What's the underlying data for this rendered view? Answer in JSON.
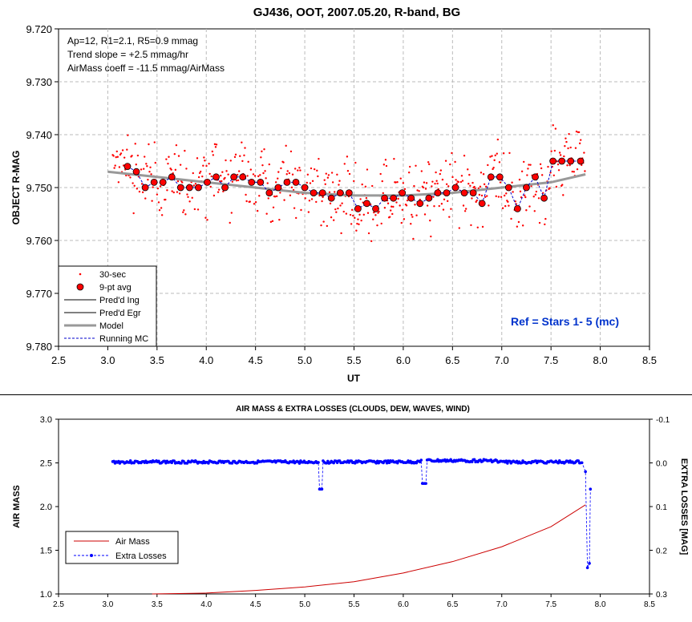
{
  "chart_data": [
    {
      "type": "scatter",
      "title": "GJ436, OOT, 2007.05.20, R-band, BG",
      "xlabel": "UT",
      "ylabel": "OBJECT R-MAG",
      "xlim": [
        2.5,
        8.5
      ],
      "ylim": [
        9.72,
        9.78
      ],
      "y_inverted": true,
      "x_ticks": [
        "2.5",
        "3.0",
        "3.5",
        "4.0",
        "4.5",
        "5.0",
        "5.5",
        "6.0",
        "6.5",
        "7.0",
        "7.5",
        "8.0",
        "8.5"
      ],
      "y_ticks": [
        "9.720",
        "9.730",
        "9.740",
        "9.750",
        "9.760",
        "9.770",
        "9.780"
      ],
      "grid": true,
      "notes": [
        "Ap=12, R1=2.1, R5=0.9 mmag",
        "Trend slope = +2.5 mmag/hr",
        "AirMass coeff = -11.5 mmag/AirMass"
      ],
      "ref_label": "Ref = Stars 1- 5 (mc)",
      "legend_position": "bottom-left",
      "legend": [
        "30-sec",
        "9-pt avg",
        "Pred'd Ing",
        "Pred'd Egr",
        "Model",
        "Running MC"
      ],
      "colors": {
        "raw": "#ff0000",
        "avg_fill": "#ff0000",
        "avg_edge": "#000000",
        "model": "#999999",
        "running": "#0000cc",
        "ref": "#0033cc"
      },
      "series": [
        {
          "name": "9-pt avg",
          "x": [
            3.2,
            3.29,
            3.38,
            3.47,
            3.56,
            3.65,
            3.74,
            3.83,
            3.92,
            4.01,
            4.1,
            4.19,
            4.28,
            4.37,
            4.46,
            4.55,
            4.64,
            4.73,
            4.82,
            4.91,
            5.0,
            5.09,
            5.18,
            5.27,
            5.36,
            5.45,
            5.54,
            5.63,
            5.72,
            5.81,
            5.9,
            5.99,
            6.08,
            6.17,
            6.26,
            6.35,
            6.44,
            6.53,
            6.62,
            6.71,
            6.8,
            6.89,
            6.98,
            7.07,
            7.16,
            7.25,
            7.34,
            7.43,
            7.52,
            7.61,
            7.7,
            7.8
          ],
          "y": [
            9.746,
            9.747,
            9.75,
            9.749,
            9.749,
            9.748,
            9.75,
            9.75,
            9.75,
            9.749,
            9.748,
            9.75,
            9.748,
            9.748,
            9.749,
            9.749,
            9.751,
            9.75,
            9.749,
            9.749,
            9.75,
            9.751,
            9.751,
            9.752,
            9.751,
            9.751,
            9.754,
            9.753,
            9.754,
            9.752,
            9.752,
            9.751,
            9.752,
            9.753,
            9.752,
            9.751,
            9.751,
            9.75,
            9.751,
            9.751,
            9.753,
            9.748,
            9.748,
            9.75,
            9.754,
            9.75,
            9.748,
            9.752,
            9.745,
            9.745,
            9.745,
            9.745
          ]
        },
        {
          "name": "Model",
          "x": [
            3.0,
            3.5,
            4.0,
            4.5,
            5.0,
            5.5,
            6.0,
            6.5,
            7.0,
            7.5,
            7.85
          ],
          "y": [
            9.747,
            9.748,
            9.749,
            9.75,
            9.751,
            9.7515,
            9.7515,
            9.751,
            9.75,
            9.749,
            9.7475
          ]
        }
      ]
    },
    {
      "type": "line",
      "title": "AIR MASS & EXTRA LOSSES (CLOUDS, DEW, WAVES, WIND)",
      "xlabel": "",
      "ylabel": "AIR MASS",
      "y2label": "EXTRA LOSSES [MAG]",
      "xlim": [
        2.5,
        8.5
      ],
      "ylim": [
        1.0,
        3.0
      ],
      "y2lim": [
        -0.1,
        0.3
      ],
      "x_ticks": [
        "2.5",
        "3.0",
        "3.5",
        "4.0",
        "4.5",
        "5.0",
        "5.5",
        "6.0",
        "6.5",
        "7.0",
        "7.5",
        "8.0",
        "8.5"
      ],
      "y_ticks": [
        "1.0",
        "1.5",
        "2.0",
        "2.5",
        "3.0"
      ],
      "y2_ticks": [
        "-0.1",
        "0.0",
        "0.1",
        "0.2",
        "0.3"
      ],
      "legend_position": "bottom-left",
      "legend": [
        "Air Mass",
        "Extra Losses"
      ],
      "colors": {
        "airmass": "#cc0000",
        "losses": "#0000ff"
      },
      "series": [
        {
          "name": "Air Mass",
          "x": [
            3.45,
            4.0,
            4.5,
            5.0,
            5.5,
            6.0,
            6.5,
            7.0,
            7.5,
            7.85
          ],
          "y": [
            1.0,
            1.01,
            1.04,
            1.08,
            1.14,
            1.24,
            1.37,
            1.54,
            1.77,
            2.02
          ]
        },
        {
          "name": "Extra Losses",
          "x": [
            3.05,
            3.5,
            4.0,
            4.5,
            5.0,
            5.15,
            5.17,
            5.5,
            6.0,
            6.2,
            6.22,
            6.5,
            7.0,
            7.5,
            7.8,
            7.85,
            7.87,
            7.9
          ],
          "y": [
            0.0,
            -0.002,
            0.0,
            0.0,
            -0.002,
            0.0,
            0.06,
            0.0,
            -0.004,
            0.0,
            0.05,
            -0.005,
            -0.003,
            0.0,
            0.0,
            0.02,
            0.24,
            0.06
          ]
        }
      ]
    }
  ]
}
